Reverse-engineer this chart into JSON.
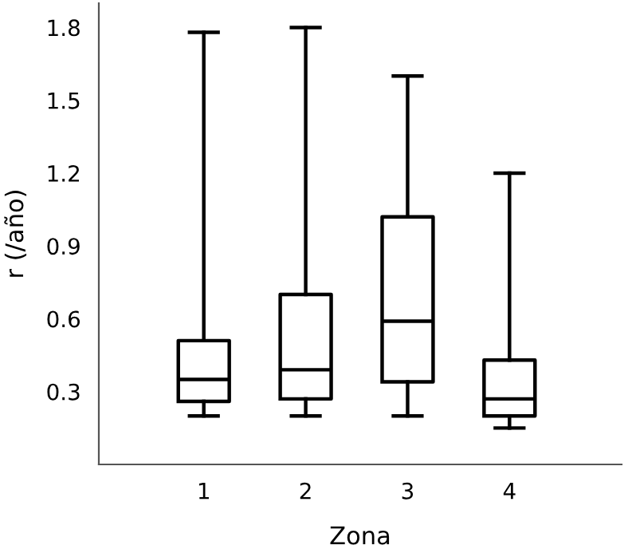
{
  "chart_data": {
    "type": "box",
    "xlabel": "Zona",
    "ylabel": "r (/año)",
    "categories": [
      "1",
      "2",
      "3",
      "4"
    ],
    "boxes": [
      {
        "low": 0.2,
        "q1": 0.26,
        "median": 0.35,
        "q3": 0.51,
        "high": 1.78
      },
      {
        "low": 0.2,
        "q1": 0.27,
        "median": 0.39,
        "q3": 0.7,
        "high": 1.8
      },
      {
        "low": 0.2,
        "q1": 0.34,
        "median": 0.59,
        "q3": 1.02,
        "high": 1.6
      },
      {
        "low": 0.15,
        "q1": 0.2,
        "median": 0.27,
        "q3": 0.43,
        "high": 1.2
      }
    ],
    "ylim": [
      0,
      1.9
    ],
    "yticks": [
      0.3,
      0.6,
      0.9,
      1.2,
      1.5,
      1.8
    ],
    "grid": false,
    "legend": false
  }
}
